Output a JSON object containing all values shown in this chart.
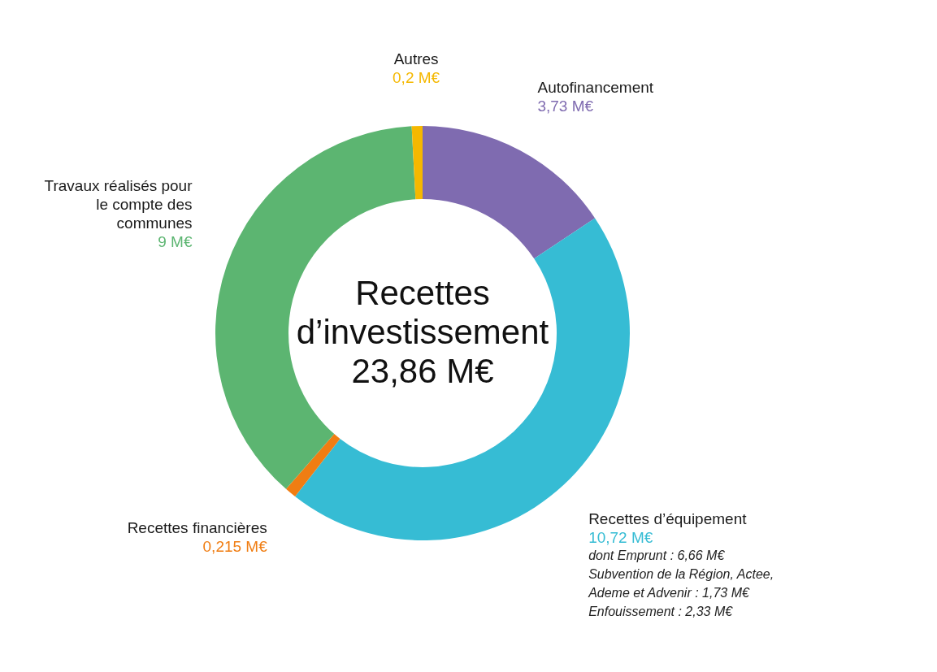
{
  "chart_data": {
    "type": "donut",
    "title": "Recettes d’investissement",
    "subtitle": "23,86 M€",
    "categories": [
      "Autofinancement",
      "Recettes d’équipement",
      "Recettes financières",
      "Travaux réalisés pour le compte des communes",
      "Autres"
    ],
    "values": [
      3.73,
      10.72,
      0.215,
      9,
      0.2
    ],
    "colors": [
      "#7f6bb0",
      "#36bcd4",
      "#f07d12",
      "#5cb571",
      "#f5b800"
    ],
    "value_labels": [
      "3,73 M€",
      "10,72 M€",
      "0,215 M€",
      "9 M€",
      "0,2 M€"
    ],
    "annotations": [
      "dont Emprunt : 6,66 M€",
      "Subvention de la Région, Actee, Ademe et Advenir : 1,73 M€",
      "Enfouissement : 2,33 M€"
    ]
  }
}
